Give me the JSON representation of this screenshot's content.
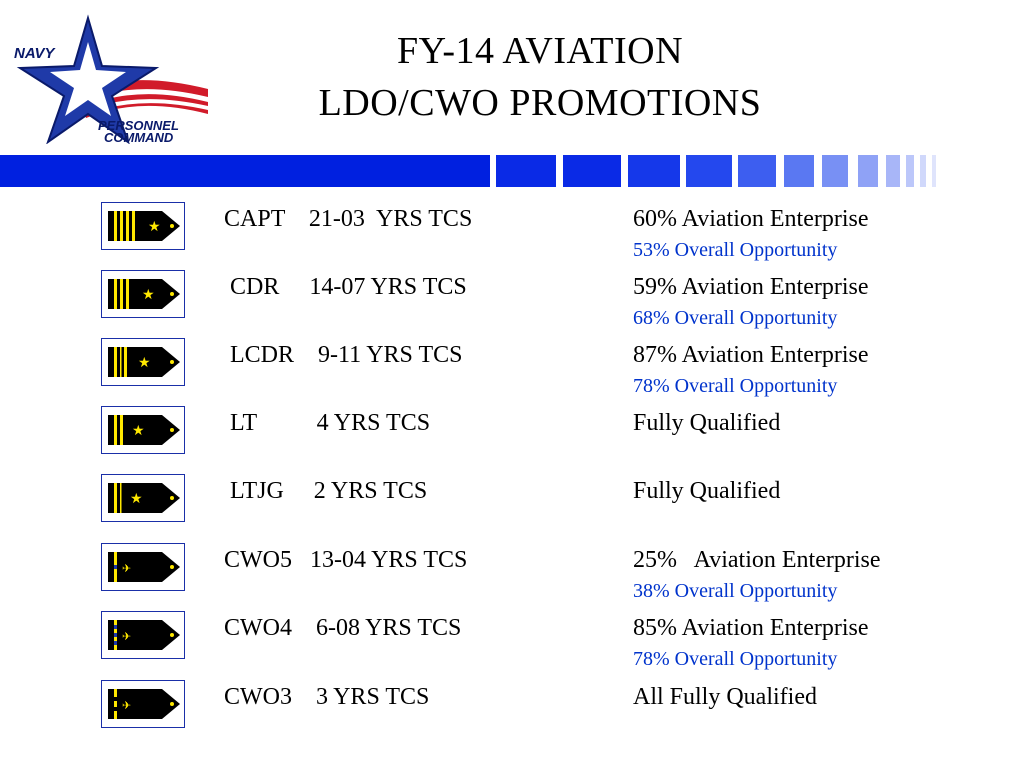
{
  "logo": {
    "line1": "NAVY",
    "line2": "PERSONNEL",
    "line3": "COMMAND",
    "icon": "star-flag-logo"
  },
  "title": {
    "line1": "FY-14 AVIATION",
    "line2": "LDO/CWO PROMOTIONS"
  },
  "colors": {
    "divider_blue": "#0020e0",
    "opportunity_text": "#0033cc",
    "board_border": "#1a2fa8",
    "insignia_gold": "#ffe800"
  },
  "rows": [
    {
      "insignia": "capt-shoulder-board-icon",
      "rank": "CAPT    21-03  YRS TCS",
      "stat": "60% Aviation Enterprise",
      "opportunity": "53% Overall Opportunity"
    },
    {
      "insignia": "cdr-shoulder-board-icon",
      "rank": " CDR     14-07 YRS TCS",
      "stat": "59% Aviation Enterprise",
      "opportunity": "68% Overall Opportunity"
    },
    {
      "insignia": "lcdr-shoulder-board-icon",
      "rank": " LCDR    9-11 YRS TCS",
      "stat": "87% Aviation Enterprise",
      "opportunity": "78% Overall Opportunity"
    },
    {
      "insignia": "lt-shoulder-board-icon",
      "rank": " LT          4 YRS TCS",
      "stat": "Fully Qualified",
      "opportunity": ""
    },
    {
      "insignia": "ltjg-shoulder-board-icon",
      "rank": " LTJG     2 YRS TCS",
      "stat": "Fully Qualified",
      "opportunity": ""
    },
    {
      "insignia": "cwo5-shoulder-board-icon",
      "rank": "CWO5   13-04 YRS TCS",
      "stat": "25%   Aviation Enterprise",
      "opportunity": "38% Overall Opportunity"
    },
    {
      "insignia": "cwo4-shoulder-board-icon",
      "rank": "CWO4    6-08 YRS TCS",
      "stat": "85% Aviation Enterprise",
      "opportunity": "78% Overall Opportunity"
    },
    {
      "insignia": "cwo3-shoulder-board-icon",
      "rank": "CWO3    3 YRS TCS",
      "stat": "All Fully Qualified",
      "opportunity": ""
    }
  ]
}
